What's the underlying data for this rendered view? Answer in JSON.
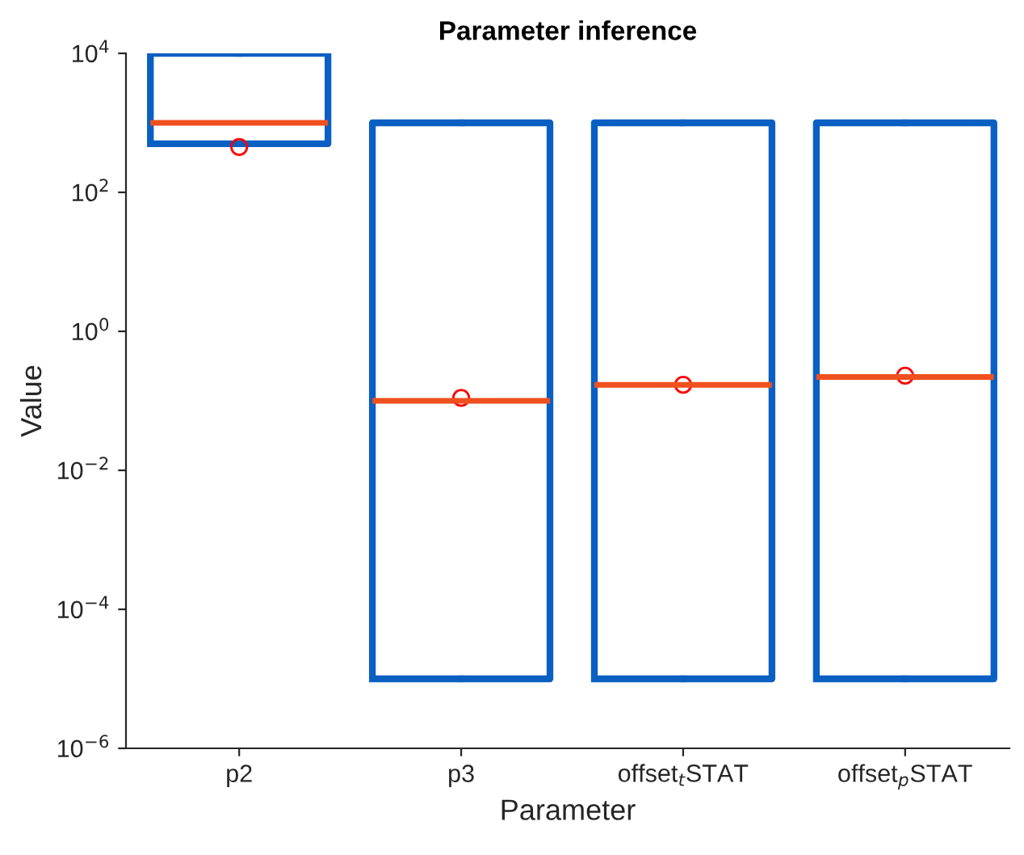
{
  "chart_data": {
    "type": "box",
    "title": "Parameter inference",
    "xlabel": "Parameter",
    "ylabel": "Value",
    "categories": [
      "p2",
      "p3",
      "offset$_{t}$STAT",
      "offset$_{p}$STAT"
    ],
    "series": [
      {
        "color": "#0a5fc3",
        "boxes": [
          {
            "low": 500,
            "q1": 500,
            "median": 1000,
            "q3": 10000,
            "high": 10000
          },
          {
            "low": 1e-05,
            "q1": 1e-05,
            "median": 0.1,
            "q3": 1000,
            "high": 1000
          },
          {
            "low": 1e-05,
            "q1": 1e-05,
            "median": 0.17,
            "q3": 1000,
            "high": 1000
          },
          {
            "low": 1e-05,
            "q1": 1e-05,
            "median": 0.22,
            "q3": 1000,
            "high": 1000
          }
        ]
      },
      {
        "type": "scatter",
        "color": "#ff0000",
        "marker": "circle",
        "x": [
          "p2",
          "p3",
          "offset$_{t}$STAT",
          "offset$_{p}$STAT"
        ],
        "values": [
          450,
          0.11,
          0.17,
          0.23
        ]
      }
    ],
    "log": "y",
    "ylim": [
      1e-06,
      10000
    ],
    "yticks": [
      {
        "value": 1e-06,
        "label": "10$^{−6}$"
      },
      {
        "value": 0.0001,
        "label": "10$^{−4}$"
      },
      {
        "value": 0.01,
        "label": "10$^{−2}$"
      },
      {
        "value": 1,
        "label": "10$^{0}$"
      },
      {
        "value": 100,
        "label": "10$^{2}$"
      },
      {
        "value": 10000,
        "label": "10$^{4}$"
      }
    ],
    "grid": false,
    "legend": false
  }
}
